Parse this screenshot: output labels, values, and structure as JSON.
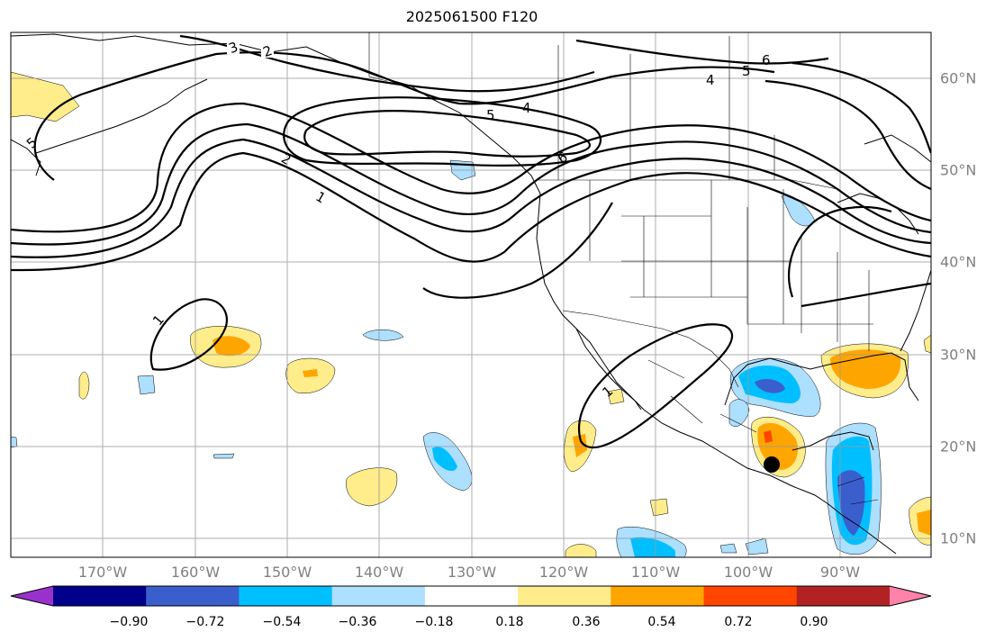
{
  "title": "2025061500 F120",
  "lon_labels": [
    "170°W",
    "160°W",
    "150°W",
    "140°W",
    "130°W",
    "120°W",
    "110°W",
    "100°W",
    "90°W"
  ],
  "lat_labels": [
    "60°N",
    "50°N",
    "40°N",
    "30°N",
    "20°N",
    "10°N"
  ],
  "colorbar": {
    "tick_labels": [
      "−0.90",
      "−0.72",
      "−0.54",
      "−0.36",
      "−0.18",
      "0.18",
      "0.36",
      "0.54",
      "0.72",
      "0.90"
    ],
    "colors": [
      "#9932CC",
      "#00008B",
      "#3A5FCD",
      "#00BFFF",
      "#ADDFFF",
      "#FFFFFF",
      "#FFEC8B",
      "#FFA500",
      "#FF4500",
      "#B22222",
      "#FF82AB"
    ]
  },
  "contour_labels": [
    "3",
    "2",
    "1",
    "4",
    "5",
    "6",
    "4",
    "5",
    "6",
    "2",
    "1",
    "5",
    "1",
    "1"
  ],
  "marker": {
    "label": "point marker",
    "lon": -96.5,
    "lat": 18.0
  }
}
